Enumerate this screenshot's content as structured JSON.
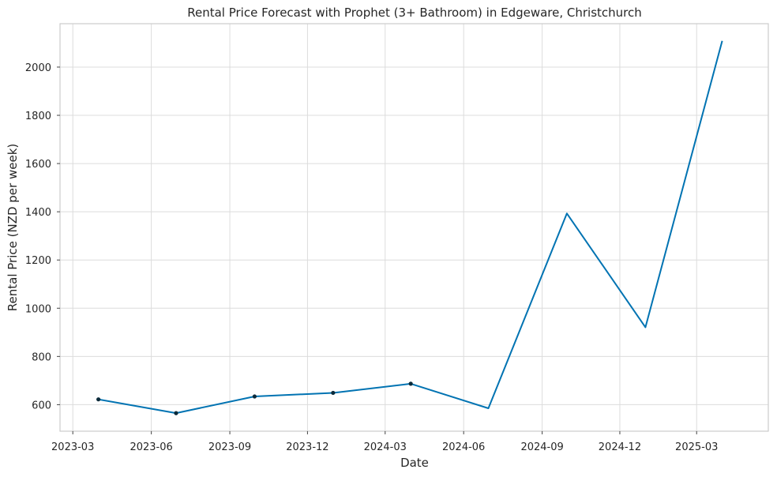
{
  "chart_data": {
    "type": "line",
    "title": "Rental Price Forecast with Prophet (3+ Bathroom) in Edgeware, Christchurch",
    "xlabel": "Date",
    "ylabel": "Rental Price (NZD per week)",
    "x_ticks": [
      "2023-03",
      "2023-06",
      "2023-09",
      "2023-12",
      "2024-03",
      "2024-06",
      "2024-09",
      "2024-12",
      "2025-03"
    ],
    "y_ticks": [
      600,
      800,
      1000,
      1200,
      1400,
      1600,
      1800,
      2000
    ],
    "ylim": [
      490,
      2180
    ],
    "xlim": [
      "2023-02-14",
      "2025-05-24"
    ],
    "grid": true,
    "line_color": "#0173b2",
    "marker_color": "#0b2a3a",
    "forecast": {
      "x": [
        "2023-03-31",
        "2023-06-30",
        "2023-09-30",
        "2023-12-31",
        "2024-03-31",
        "2024-06-30",
        "2024-09-30",
        "2024-12-31",
        "2025-03-31"
      ],
      "y": [
        622,
        565,
        634,
        649,
        687,
        585,
        1393,
        921,
        2109
      ]
    },
    "observed": {
      "x": [
        "2023-03-31",
        "2023-06-30",
        "2023-09-30",
        "2023-12-31",
        "2024-03-31"
      ],
      "y": [
        622,
        565,
        634,
        649,
        687
      ]
    }
  }
}
